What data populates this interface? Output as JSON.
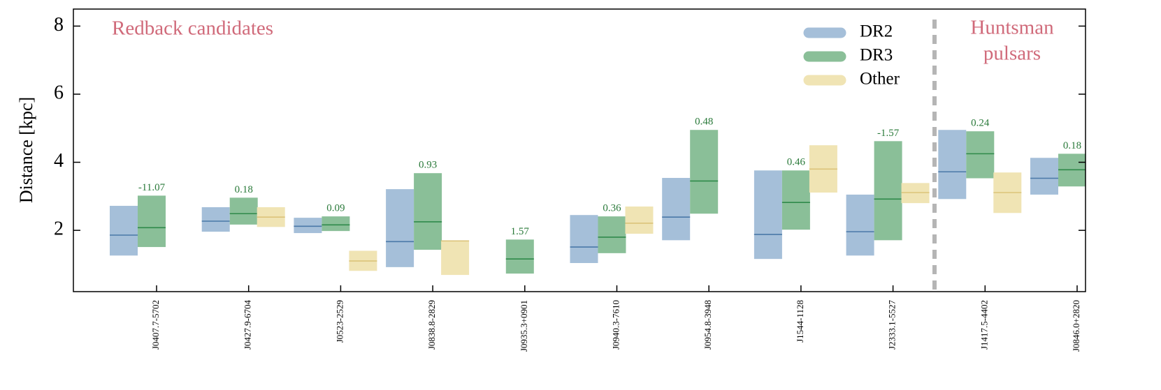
{
  "chart_data": {
    "type": "range_bar",
    "y_label": "Distance [kpc]",
    "categories": [
      "J0407.7-5702",
      "J0427.9-6704",
      "J0523-2529",
      "J0838.8-2829",
      "J0935.3+0901",
      "J0940.3-7610",
      "J0954.8-3948",
      "J1544-1128",
      "J2333.1-5527",
      "J1417.5-4402",
      "J0846.0+2820"
    ],
    "ylim": [
      0.2,
      8.5
    ],
    "yticks": [
      2,
      4,
      6,
      8
    ],
    "series": [
      {
        "name": "DR2",
        "color": "#a5bfd9",
        "line_color": "#4a78a8",
        "low": [
          1.26,
          1.96,
          1.92,
          0.92,
          null,
          1.04,
          1.71,
          1.16,
          1.26,
          2.92,
          3.05
        ],
        "median": [
          1.86,
          2.27,
          2.12,
          1.67,
          null,
          1.51,
          2.39,
          1.88,
          1.96,
          3.72,
          3.53
        ],
        "high": [
          2.72,
          2.68,
          2.37,
          3.21,
          null,
          2.45,
          3.54,
          3.76,
          3.05,
          4.95,
          4.13
        ]
      },
      {
        "name": "DR3",
        "color": "#8abf98",
        "line_color": "#2f8a4a",
        "low": [
          1.51,
          2.17,
          1.98,
          1.43,
          0.73,
          1.33,
          2.49,
          2.02,
          1.71,
          3.53,
          3.29
        ],
        "median": [
          2.08,
          2.49,
          2.16,
          2.25,
          1.16,
          1.8,
          3.45,
          2.82,
          2.92,
          4.25,
          3.78
        ],
        "high": [
          3.02,
          2.96,
          2.41,
          3.68,
          1.73,
          2.41,
          4.95,
          3.76,
          4.62,
          4.91,
          4.25
        ]
      },
      {
        "name": "Other",
        "color": "#f0e4b4",
        "line_color": "#dcc37a",
        "low": [
          null,
          2.1,
          0.81,
          0.69,
          null,
          1.9,
          null,
          3.11,
          2.8,
          2.51,
          null
        ],
        "median": [
          null,
          2.39,
          1.1,
          1.69,
          null,
          2.21,
          null,
          3.8,
          3.11,
          3.11,
          null
        ],
        "high": [
          null,
          2.68,
          1.4,
          1.69,
          null,
          2.7,
          null,
          4.5,
          3.39,
          3.7,
          null
        ]
      }
    ],
    "annotations": [
      "-11.07",
      "0.18",
      "0.09",
      "0.93",
      "1.57",
      "0.36",
      "0.48",
      "0.46",
      "-1.57",
      "0.24",
      "0.18"
    ],
    "region_labels": {
      "left": "Redback candidates",
      "right": [
        "Huntsman",
        "pulsars"
      ]
    },
    "legend": "upper right"
  }
}
